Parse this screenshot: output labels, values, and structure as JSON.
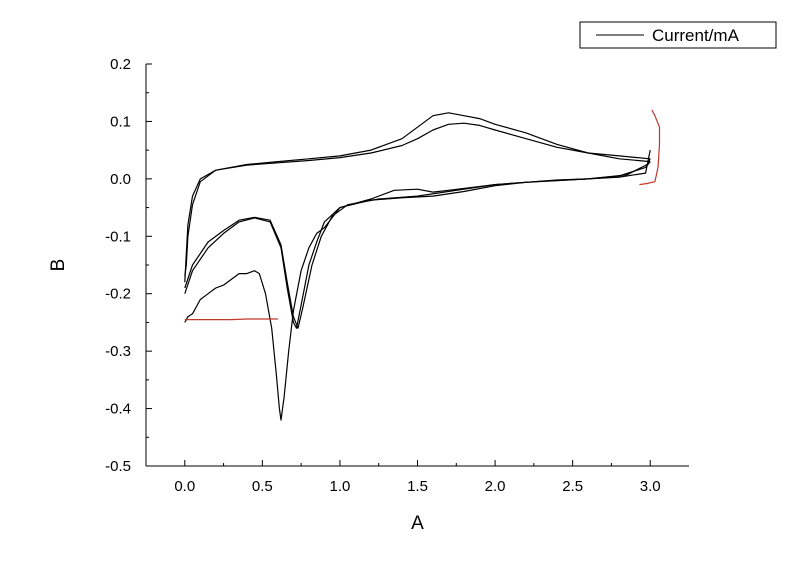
{
  "chart_data": {
    "type": "line",
    "title": "",
    "xlabel": "A",
    "ylabel": "B",
    "xlim": [
      -0.25,
      3.25
    ],
    "ylim": [
      -0.5,
      0.2
    ],
    "x_ticks": [
      0.0,
      0.5,
      1.0,
      1.5,
      2.0,
      2.5,
      3.0
    ],
    "y_ticks": [
      -0.5,
      -0.4,
      -0.3,
      -0.2,
      -0.1,
      0.0,
      0.1,
      0.2
    ],
    "x_tick_labels": [
      "0.0",
      "0.5",
      "1.0",
      "1.5",
      "2.0",
      "2.5",
      "3.0"
    ],
    "y_tick_labels": [
      "-0.5",
      "-0.4",
      "-0.3",
      "-0.2",
      "-0.1",
      "0.0",
      "0.1",
      "0.2"
    ],
    "grid": false,
    "legend": {
      "position": "top-right",
      "entries": [
        "Current/mA"
      ]
    },
    "colors": {
      "series": "#000000",
      "highlight": "#c0392b"
    },
    "series": [
      {
        "name": "Current/mA",
        "segments": [
          {
            "color": "#000000",
            "points": [
              [
                0.0,
                -0.25
              ],
              [
                0.02,
                -0.24
              ],
              [
                0.05,
                -0.235
              ],
              [
                0.1,
                -0.21
              ],
              [
                0.15,
                -0.2
              ],
              [
                0.2,
                -0.19
              ],
              [
                0.25,
                -0.185
              ],
              [
                0.3,
                -0.175
              ],
              [
                0.35,
                -0.165
              ],
              [
                0.4,
                -0.165
              ],
              [
                0.45,
                -0.16
              ],
              [
                0.48,
                -0.165
              ],
              [
                0.52,
                -0.2
              ],
              [
                0.56,
                -0.26
              ],
              [
                0.59,
                -0.34
              ],
              [
                0.61,
                -0.4
              ],
              [
                0.62,
                -0.42
              ],
              [
                0.64,
                -0.38
              ],
              [
                0.67,
                -0.3
              ],
              [
                0.7,
                -0.23
              ],
              [
                0.75,
                -0.16
              ],
              [
                0.8,
                -0.12
              ],
              [
                0.85,
                -0.095
              ],
              [
                0.9,
                -0.085
              ],
              [
                1.0,
                -0.05
              ],
              [
                1.2,
                -0.035
              ],
              [
                1.35,
                -0.02
              ],
              [
                1.5,
                -0.018
              ],
              [
                1.6,
                -0.023
              ],
              [
                1.7,
                -0.02
              ],
              [
                1.85,
                -0.015
              ],
              [
                2.0,
                -0.01
              ],
              [
                2.2,
                -0.006
              ],
              [
                2.4,
                -0.003
              ],
              [
                2.6,
                0.0
              ],
              [
                2.8,
                0.003
              ],
              [
                2.97,
                0.01
              ],
              [
                3.0,
                0.05
              ]
            ]
          },
          {
            "color": "#000000",
            "points": [
              [
                3.0,
                0.03
              ],
              [
                2.8,
                0.035
              ],
              [
                2.6,
                0.045
              ],
              [
                2.4,
                0.06
              ],
              [
                2.2,
                0.08
              ],
              [
                2.0,
                0.095
              ],
              [
                1.9,
                0.105
              ],
              [
                1.8,
                0.11
              ],
              [
                1.7,
                0.115
              ],
              [
                1.6,
                0.11
              ],
              [
                1.5,
                0.09
              ],
              [
                1.4,
                0.07
              ],
              [
                1.2,
                0.05
              ],
              [
                1.0,
                0.04
              ],
              [
                0.8,
                0.035
              ],
              [
                0.6,
                0.03
              ],
              [
                0.4,
                0.025
              ],
              [
                0.2,
                0.015
              ],
              [
                0.1,
                0.0
              ],
              [
                0.05,
                -0.03
              ],
              [
                0.02,
                -0.08
              ],
              [
                0.01,
                -0.13
              ],
              [
                0.0,
                -0.18
              ]
            ]
          },
          {
            "color": "#000000",
            "points": [
              [
                0.0,
                -0.2
              ],
              [
                0.05,
                -0.16
              ],
              [
                0.15,
                -0.12
              ],
              [
                0.25,
                -0.095
              ],
              [
                0.35,
                -0.075
              ],
              [
                0.45,
                -0.068
              ],
              [
                0.55,
                -0.075
              ],
              [
                0.62,
                -0.12
              ],
              [
                0.66,
                -0.19
              ],
              [
                0.7,
                -0.25
              ],
              [
                0.72,
                -0.26
              ],
              [
                0.75,
                -0.22
              ],
              [
                0.8,
                -0.15
              ],
              [
                0.85,
                -0.11
              ],
              [
                0.9,
                -0.075
              ],
              [
                1.0,
                -0.05
              ],
              [
                1.2,
                -0.037
              ],
              [
                1.4,
                -0.033
              ],
              [
                1.6,
                -0.03
              ],
              [
                1.8,
                -0.022
              ],
              [
                2.0,
                -0.012
              ],
              [
                2.2,
                -0.006
              ],
              [
                2.4,
                -0.002
              ],
              [
                2.6,
                0.0
              ],
              [
                2.8,
                0.005
              ],
              [
                2.97,
                0.02
              ],
              [
                3.0,
                0.03
              ]
            ]
          },
          {
            "color": "#000000",
            "points": [
              [
                3.0,
                0.035
              ],
              [
                2.8,
                0.04
              ],
              [
                2.6,
                0.045
              ],
              [
                2.4,
                0.055
              ],
              [
                2.2,
                0.07
              ],
              [
                2.0,
                0.085
              ],
              [
                1.9,
                0.093
              ],
              [
                1.8,
                0.097
              ],
              [
                1.7,
                0.095
              ],
              [
                1.6,
                0.085
              ],
              [
                1.5,
                0.07
              ],
              [
                1.4,
                0.058
              ],
              [
                1.2,
                0.045
              ],
              [
                1.0,
                0.037
              ],
              [
                0.8,
                0.032
              ],
              [
                0.6,
                0.028
              ],
              [
                0.4,
                0.024
              ],
              [
                0.2,
                0.015
              ],
              [
                0.1,
                -0.005
              ],
              [
                0.05,
                -0.045
              ],
              [
                0.02,
                -0.1
              ],
              [
                0.01,
                -0.15
              ],
              [
                0.0,
                -0.17
              ]
            ]
          },
          {
            "color": "#000000",
            "points": [
              [
                0.0,
                -0.19
              ],
              [
                0.05,
                -0.15
              ],
              [
                0.15,
                -0.11
              ],
              [
                0.25,
                -0.09
              ],
              [
                0.35,
                -0.072
              ],
              [
                0.45,
                -0.067
              ],
              [
                0.55,
                -0.072
              ],
              [
                0.62,
                -0.115
              ],
              [
                0.66,
                -0.18
              ],
              [
                0.7,
                -0.24
              ],
              [
                0.73,
                -0.26
              ],
              [
                0.76,
                -0.225
              ],
              [
                0.82,
                -0.15
              ],
              [
                0.88,
                -0.1
              ],
              [
                0.95,
                -0.065
              ],
              [
                1.05,
                -0.045
              ],
              [
                1.25,
                -0.035
              ],
              [
                1.5,
                -0.03
              ],
              [
                1.75,
                -0.02
              ],
              [
                2.0,
                -0.01
              ],
              [
                2.3,
                -0.004
              ],
              [
                2.6,
                0.0
              ],
              [
                2.85,
                0.007
              ],
              [
                2.98,
                0.025
              ],
              [
                3.0,
                0.035
              ]
            ]
          },
          {
            "color": "#c0392b",
            "points": [
              [
                2.93,
                -0.01
              ],
              [
                2.98,
                -0.008
              ],
              [
                3.03,
                -0.005
              ],
              [
                3.05,
                0.02
              ],
              [
                3.06,
                0.06
              ],
              [
                3.06,
                0.09
              ],
              [
                3.03,
                0.11
              ],
              [
                3.01,
                0.12
              ]
            ]
          },
          {
            "color": "#c0392b",
            "points": [
              [
                0.0,
                -0.245
              ],
              [
                0.1,
                -0.245
              ],
              [
                0.2,
                -0.245
              ],
              [
                0.3,
                -0.245
              ],
              [
                0.4,
                -0.244
              ],
              [
                0.5,
                -0.244
              ],
              [
                0.6,
                -0.244
              ]
            ]
          }
        ]
      }
    ]
  }
}
